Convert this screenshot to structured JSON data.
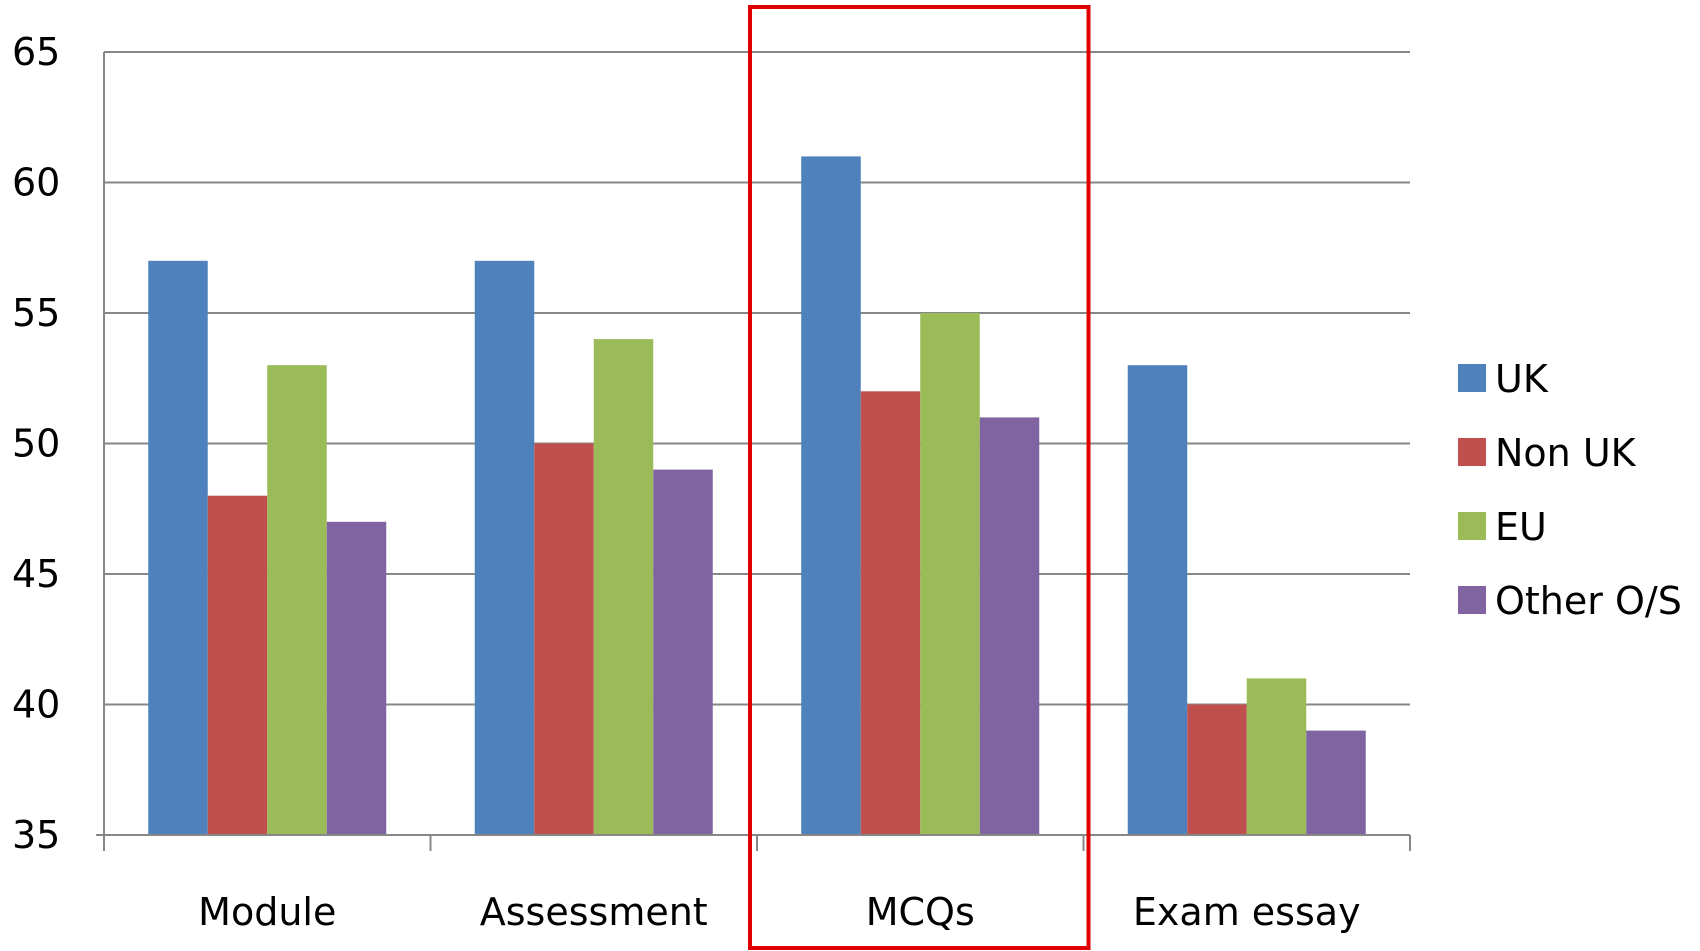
{
  "chart_data": {
    "type": "bar",
    "categories": [
      "Module",
      "Assessment",
      "MCQs",
      "Exam essay"
    ],
    "series": [
      {
        "name": "UK",
        "color": "#4F81BD",
        "values": [
          57,
          57,
          61,
          53
        ]
      },
      {
        "name": "Non UK",
        "color": "#C0504D",
        "values": [
          48,
          50,
          52,
          40
        ]
      },
      {
        "name": "EU",
        "color": "#9BBB59",
        "values": [
          53,
          54,
          55,
          41
        ]
      },
      {
        "name": "Other O/S",
        "color": "#8064A2",
        "values": [
          47,
          49,
          51,
          39
        ]
      }
    ],
    "ylim": [
      35,
      65
    ],
    "yticks": [
      "35",
      "40",
      "45",
      "50",
      "55",
      "60",
      "65"
    ],
    "grid": true,
    "legend": "right",
    "highlight": {
      "category": "MCQs",
      "color": "#E00000"
    }
  }
}
